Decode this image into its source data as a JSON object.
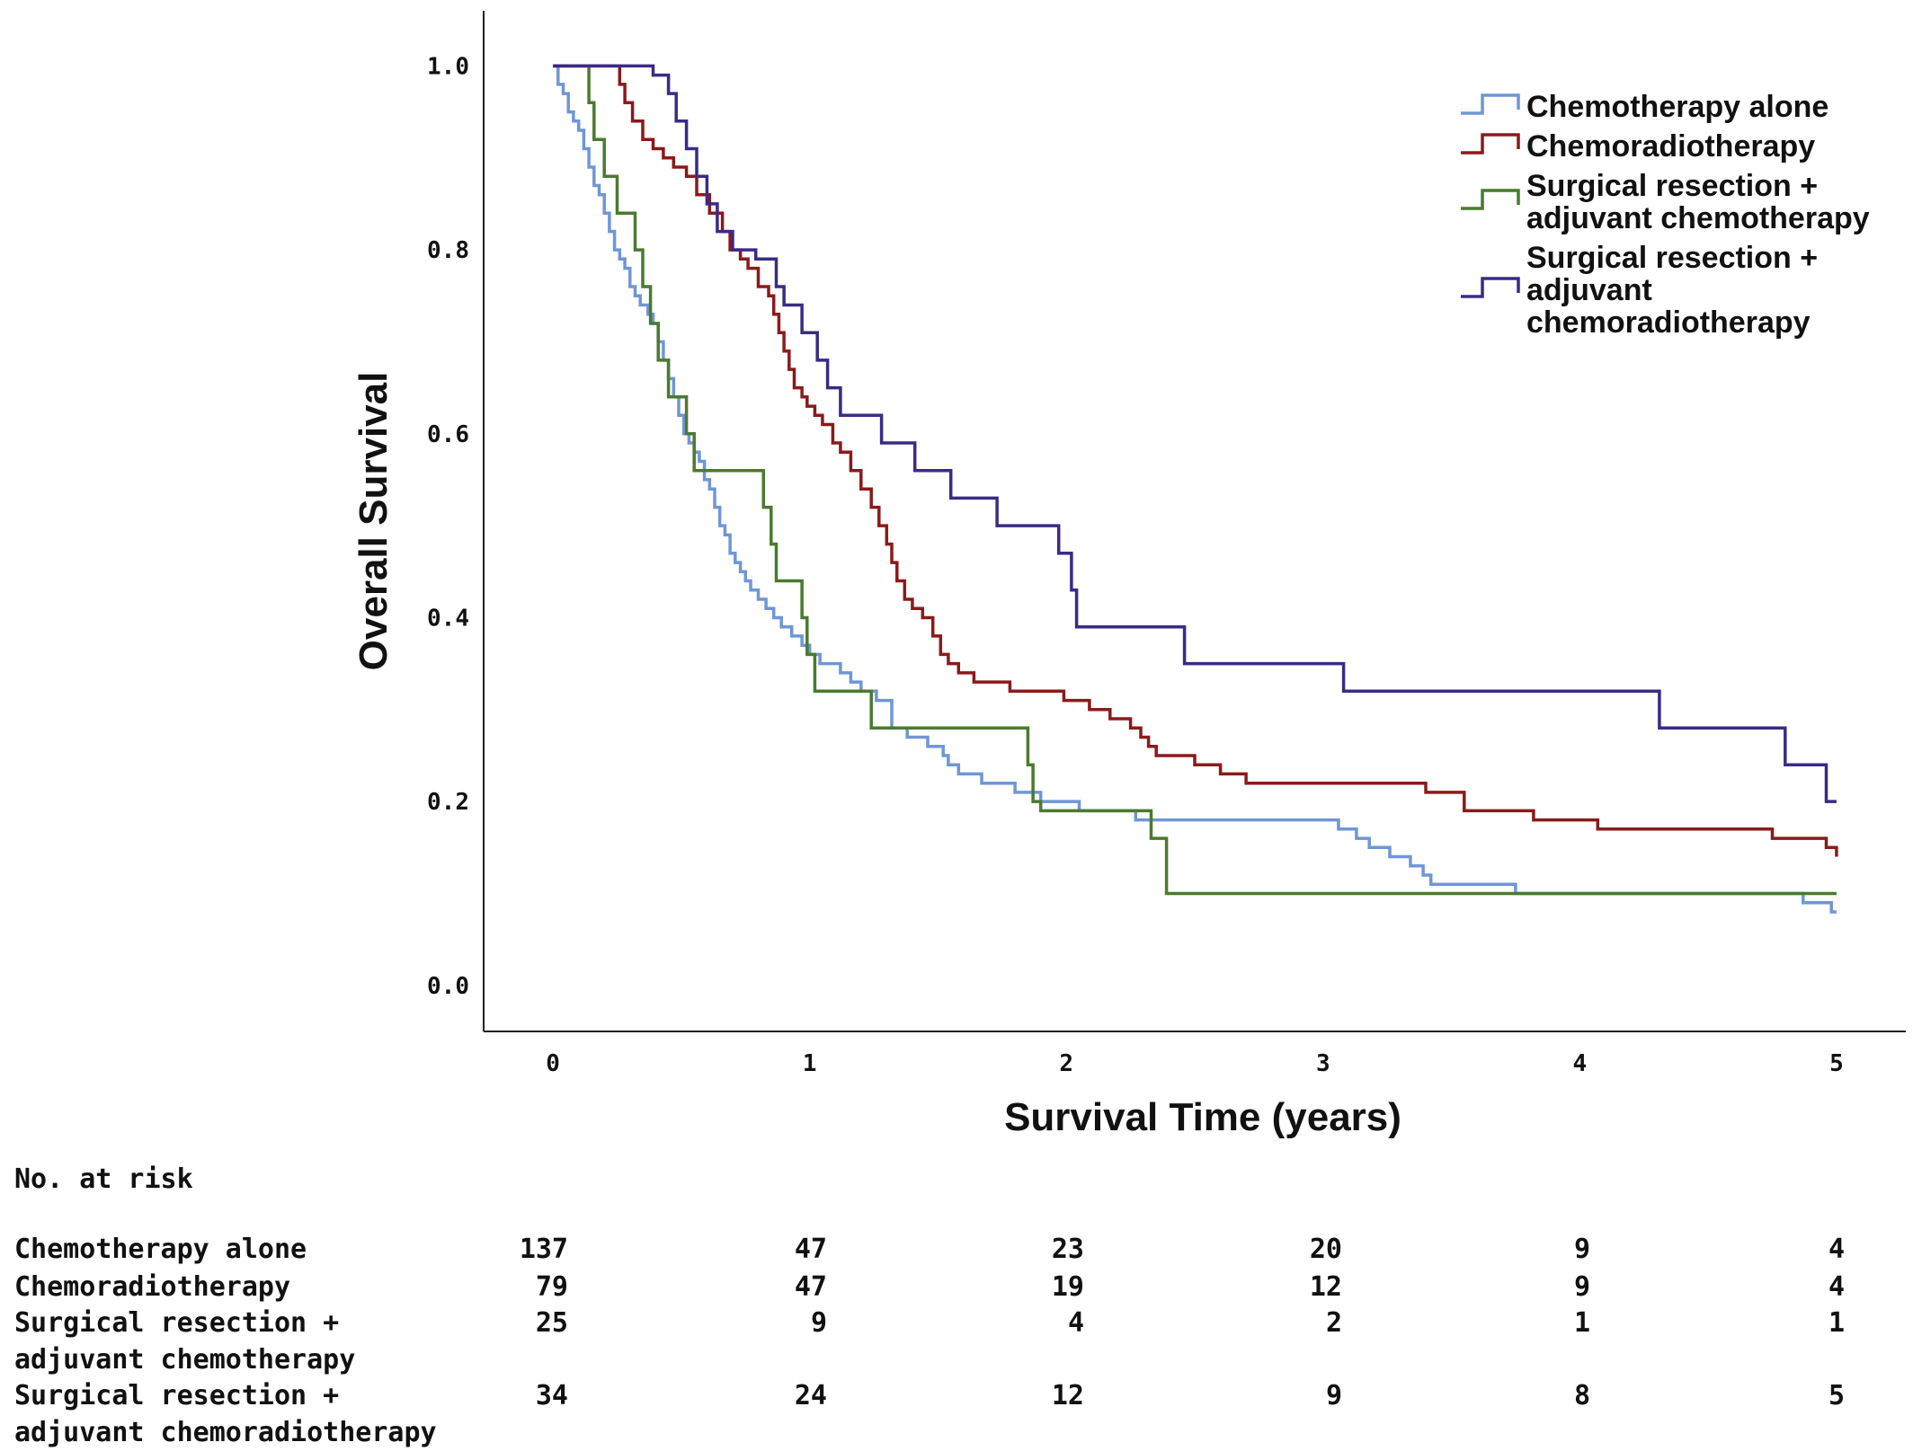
{
  "chart_data": {
    "type": "line",
    "xlabel": "Survival Time (years)",
    "ylabel": "Overall Survival",
    "xlim": [
      -0.27,
      5.27
    ],
    "ylim": [
      -0.05,
      1.06
    ],
    "x_ticks": [
      "0",
      "1",
      "2",
      "3",
      "4",
      "5"
    ],
    "y_ticks": [
      "0.0",
      "0.2",
      "0.4",
      "0.6",
      "0.8",
      "1.0"
    ],
    "grid": false,
    "legend_position": "top-right",
    "series": [
      {
        "name": "Chemotherapy alone",
        "color": "#6f96d6",
        "points": [
          [
            0,
            1.0
          ],
          [
            0.02,
            0.98
          ],
          [
            0.04,
            0.97
          ],
          [
            0.06,
            0.95
          ],
          [
            0.08,
            0.94
          ],
          [
            0.1,
            0.93
          ],
          [
            0.12,
            0.91
          ],
          [
            0.14,
            0.89
          ],
          [
            0.16,
            0.87
          ],
          [
            0.18,
            0.86
          ],
          [
            0.2,
            0.84
          ],
          [
            0.22,
            0.82
          ],
          [
            0.24,
            0.8
          ],
          [
            0.26,
            0.79
          ],
          [
            0.28,
            0.78
          ],
          [
            0.3,
            0.76
          ],
          [
            0.32,
            0.75
          ],
          [
            0.34,
            0.74
          ],
          [
            0.37,
            0.73
          ],
          [
            0.39,
            0.72
          ],
          [
            0.41,
            0.7
          ],
          [
            0.43,
            0.68
          ],
          [
            0.45,
            0.66
          ],
          [
            0.47,
            0.64
          ],
          [
            0.49,
            0.62
          ],
          [
            0.51,
            0.6
          ],
          [
            0.53,
            0.59
          ],
          [
            0.55,
            0.58
          ],
          [
            0.57,
            0.57
          ],
          [
            0.59,
            0.55
          ],
          [
            0.61,
            0.54
          ],
          [
            0.63,
            0.52
          ],
          [
            0.65,
            0.5
          ],
          [
            0.67,
            0.49
          ],
          [
            0.69,
            0.47
          ],
          [
            0.71,
            0.46
          ],
          [
            0.73,
            0.45
          ],
          [
            0.75,
            0.44
          ],
          [
            0.77,
            0.43
          ],
          [
            0.8,
            0.42
          ],
          [
            0.83,
            0.41
          ],
          [
            0.86,
            0.4
          ],
          [
            0.89,
            0.39
          ],
          [
            0.93,
            0.38
          ],
          [
            0.97,
            0.37
          ],
          [
            1.0,
            0.36
          ],
          [
            1.04,
            0.35
          ],
          [
            1.12,
            0.34
          ],
          [
            1.16,
            0.33
          ],
          [
            1.2,
            0.32
          ],
          [
            1.26,
            0.31
          ],
          [
            1.32,
            0.28
          ],
          [
            1.38,
            0.27
          ],
          [
            1.46,
            0.26
          ],
          [
            1.52,
            0.25
          ],
          [
            1.54,
            0.24
          ],
          [
            1.58,
            0.23
          ],
          [
            1.67,
            0.22
          ],
          [
            1.8,
            0.21
          ],
          [
            1.9,
            0.2
          ],
          [
            2.05,
            0.19
          ],
          [
            2.27,
            0.18
          ],
          [
            2.88,
            0.18
          ],
          [
            3.06,
            0.17
          ],
          [
            3.13,
            0.16
          ],
          [
            3.18,
            0.15
          ],
          [
            3.26,
            0.14
          ],
          [
            3.34,
            0.13
          ],
          [
            3.39,
            0.12
          ],
          [
            3.42,
            0.11
          ],
          [
            3.75,
            0.1
          ],
          [
            4.5,
            0.1
          ],
          [
            4.84,
            0.1
          ],
          [
            4.87,
            0.09
          ],
          [
            4.94,
            0.09
          ],
          [
            4.98,
            0.08
          ],
          [
            5.0,
            0.08
          ]
        ]
      },
      {
        "name": "Chemoradiotherapy",
        "color": "#8b1a1a",
        "points": [
          [
            0,
            1.0
          ],
          [
            0.25,
            1.0
          ],
          [
            0.26,
            0.98
          ],
          [
            0.28,
            0.96
          ],
          [
            0.31,
            0.94
          ],
          [
            0.35,
            0.92
          ],
          [
            0.39,
            0.91
          ],
          [
            0.43,
            0.9
          ],
          [
            0.47,
            0.89
          ],
          [
            0.52,
            0.88
          ],
          [
            0.56,
            0.86
          ],
          [
            0.61,
            0.84
          ],
          [
            0.66,
            0.82
          ],
          [
            0.69,
            0.8
          ],
          [
            0.73,
            0.79
          ],
          [
            0.76,
            0.78
          ],
          [
            0.8,
            0.76
          ],
          [
            0.84,
            0.75
          ],
          [
            0.86,
            0.73
          ],
          [
            0.88,
            0.71
          ],
          [
            0.9,
            0.69
          ],
          [
            0.92,
            0.67
          ],
          [
            0.94,
            0.65
          ],
          [
            0.97,
            0.64
          ],
          [
            0.99,
            0.63
          ],
          [
            1.02,
            0.62
          ],
          [
            1.05,
            0.61
          ],
          [
            1.09,
            0.59
          ],
          [
            1.12,
            0.58
          ],
          [
            1.16,
            0.56
          ],
          [
            1.2,
            0.54
          ],
          [
            1.24,
            0.52
          ],
          [
            1.27,
            0.5
          ],
          [
            1.3,
            0.48
          ],
          [
            1.32,
            0.46
          ],
          [
            1.34,
            0.44
          ],
          [
            1.37,
            0.42
          ],
          [
            1.4,
            0.41
          ],
          [
            1.44,
            0.4
          ],
          [
            1.48,
            0.38
          ],
          [
            1.51,
            0.36
          ],
          [
            1.54,
            0.35
          ],
          [
            1.58,
            0.34
          ],
          [
            1.64,
            0.33
          ],
          [
            1.78,
            0.32
          ],
          [
            1.99,
            0.31
          ],
          [
            2.09,
            0.3
          ],
          [
            2.17,
            0.29
          ],
          [
            2.25,
            0.28
          ],
          [
            2.29,
            0.27
          ],
          [
            2.32,
            0.26
          ],
          [
            2.35,
            0.25
          ],
          [
            2.5,
            0.24
          ],
          [
            2.6,
            0.23
          ],
          [
            2.7,
            0.22
          ],
          [
            3.4,
            0.21
          ],
          [
            3.55,
            0.19
          ],
          [
            3.82,
            0.18
          ],
          [
            4.07,
            0.17
          ],
          [
            4.75,
            0.16
          ],
          [
            4.96,
            0.15
          ],
          [
            5.0,
            0.14
          ]
        ]
      },
      {
        "name": "Surgical resection + adjuvant chemotherapy",
        "color": "#4a7a2f",
        "points": [
          [
            0,
            1.0
          ],
          [
            0.13,
            1.0
          ],
          [
            0.14,
            0.96
          ],
          [
            0.16,
            0.92
          ],
          [
            0.2,
            0.88
          ],
          [
            0.25,
            0.84
          ],
          [
            0.32,
            0.8
          ],
          [
            0.35,
            0.76
          ],
          [
            0.38,
            0.72
          ],
          [
            0.41,
            0.68
          ],
          [
            0.45,
            0.64
          ],
          [
            0.52,
            0.6
          ],
          [
            0.55,
            0.56
          ],
          [
            0.8,
            0.56
          ],
          [
            0.82,
            0.52
          ],
          [
            0.85,
            0.48
          ],
          [
            0.87,
            0.44
          ],
          [
            0.97,
            0.4
          ],
          [
            0.99,
            0.36
          ],
          [
            1.02,
            0.32
          ],
          [
            1.2,
            0.32
          ],
          [
            1.24,
            0.28
          ],
          [
            1.8,
            0.28
          ],
          [
            1.85,
            0.24
          ],
          [
            1.87,
            0.2
          ],
          [
            1.9,
            0.19
          ],
          [
            2.32,
            0.19
          ],
          [
            2.33,
            0.16
          ],
          [
            2.39,
            0.1
          ],
          [
            5.0,
            0.1
          ]
        ]
      },
      {
        "name": "Surgical resection + adjuvant chemoradiotherapy",
        "color": "#3b2a86",
        "points": [
          [
            0,
            1.0
          ],
          [
            0.38,
            1.0
          ],
          [
            0.39,
            0.99
          ],
          [
            0.45,
            0.97
          ],
          [
            0.48,
            0.94
          ],
          [
            0.52,
            0.91
          ],
          [
            0.56,
            0.88
          ],
          [
            0.6,
            0.85
          ],
          [
            0.64,
            0.82
          ],
          [
            0.7,
            0.8
          ],
          [
            0.79,
            0.79
          ],
          [
            0.87,
            0.76
          ],
          [
            0.9,
            0.74
          ],
          [
            0.97,
            0.71
          ],
          [
            1.03,
            0.68
          ],
          [
            1.07,
            0.65
          ],
          [
            1.12,
            0.62
          ],
          [
            1.28,
            0.59
          ],
          [
            1.41,
            0.56
          ],
          [
            1.55,
            0.53
          ],
          [
            1.73,
            0.5
          ],
          [
            1.97,
            0.47
          ],
          [
            2.02,
            0.43
          ],
          [
            2.04,
            0.39
          ],
          [
            2.46,
            0.35
          ],
          [
            3.08,
            0.32
          ],
          [
            4.31,
            0.28
          ],
          [
            4.8,
            0.24
          ],
          [
            4.96,
            0.2
          ],
          [
            5.0,
            0.2
          ]
        ]
      }
    ],
    "legend_lines": [
      [
        "Chemotherapy alone"
      ],
      [
        "Chemoradiotherapy"
      ],
      [
        "Surgical resection +",
        "adjuvant chemotherapy"
      ],
      [
        "Surgical resection +",
        "adjuvant",
        "chemoradiotherapy"
      ]
    ]
  },
  "risk_table": {
    "title": "No. at risk",
    "rows": [
      {
        "label_lines": [
          "Chemotherapy alone"
        ],
        "counts": [
          "137",
          "47",
          "23",
          "20",
          "9",
          "4"
        ]
      },
      {
        "label_lines": [
          "Chemoradiotherapy"
        ],
        "counts": [
          "79",
          "47",
          "19",
          "12",
          "9",
          "4"
        ]
      },
      {
        "label_lines": [
          "Surgical resection +",
          "adjuvant chemotherapy"
        ],
        "counts": [
          "25",
          "9",
          "4",
          "2",
          "1",
          "1"
        ]
      },
      {
        "label_lines": [
          "Surgical resection +",
          "adjuvant chemoradiotherapy"
        ],
        "counts": [
          "34",
          "24",
          "12",
          "9",
          "8",
          "5"
        ]
      }
    ]
  }
}
